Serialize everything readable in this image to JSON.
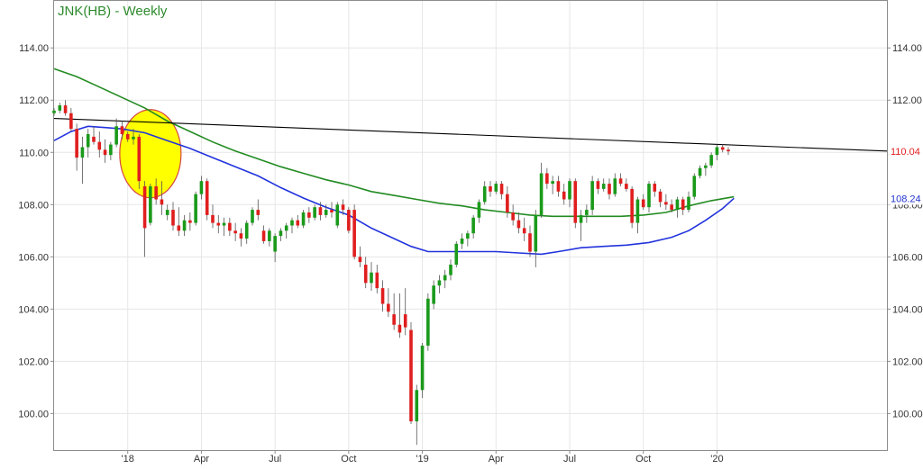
{
  "chart_data": {
    "type": "candlestick",
    "title": "JNK(HB) - Weekly",
    "ylim": [
      98.6,
      115.8
    ],
    "y_ticks": [
      "100.00",
      "102.00",
      "104.00",
      "106.00",
      "108.00",
      "110.00",
      "112.00",
      "114.00"
    ],
    "y_tick_values": [
      100,
      102,
      104,
      106,
      108,
      110,
      112,
      114
    ],
    "x_ticks": [
      {
        "label": "'18",
        "week": 13
      },
      {
        "label": "Apr",
        "week": 26
      },
      {
        "label": "Jul",
        "week": 39
      },
      {
        "label": "Oct",
        "week": 52
      },
      {
        "label": "'19",
        "week": 65
      },
      {
        "label": "Apr",
        "week": 78
      },
      {
        "label": "Jul",
        "week": 91
      },
      {
        "label": "Oct",
        "week": 104
      },
      {
        "label": "'20",
        "week": 117
      }
    ],
    "x_range_weeks": [
      0,
      147
    ],
    "price_badges": [
      {
        "value": "110.04",
        "y": 110.04,
        "color": "#e02020"
      },
      {
        "value": "108.24",
        "y": 108.24,
        "color": "#2233cc"
      }
    ],
    "trendline": {
      "color": "#000000",
      "start": {
        "week": 0,
        "y": 111.3
      },
      "end": {
        "week": 147,
        "y": 110.05
      }
    },
    "highlight_ellipse": {
      "center_week": 17,
      "center_y": 109.95,
      "fill": "#ffff00",
      "stroke": "#d64545"
    },
    "series": [
      {
        "name": "",
        "type": "moving_average",
        "color": "#228b22",
        "points": [
          [
            0,
            113.2
          ],
          [
            4,
            112.9
          ],
          [
            8,
            112.5
          ],
          [
            12,
            112.1
          ],
          [
            16,
            111.7
          ],
          [
            20,
            111.2
          ],
          [
            24,
            110.8
          ],
          [
            28,
            110.4
          ],
          [
            32,
            110.05
          ],
          [
            36,
            109.75
          ],
          [
            40,
            109.45
          ],
          [
            44,
            109.2
          ],
          [
            48,
            108.95
          ],
          [
            52,
            108.75
          ],
          [
            56,
            108.5
          ],
          [
            60,
            108.35
          ],
          [
            64,
            108.2
          ],
          [
            68,
            108.05
          ],
          [
            72,
            107.95
          ],
          [
            76,
            107.8
          ],
          [
            80,
            107.7
          ],
          [
            84,
            107.6
          ],
          [
            88,
            107.55
          ],
          [
            92,
            107.55
          ],
          [
            96,
            107.55
          ],
          [
            100,
            107.55
          ],
          [
            104,
            107.6
          ],
          [
            108,
            107.7
          ],
          [
            112,
            107.95
          ],
          [
            116,
            108.15
          ],
          [
            120,
            108.3
          ]
        ]
      },
      {
        "name": "",
        "type": "moving_average",
        "color": "#2233dd",
        "points": [
          [
            0,
            110.45
          ],
          [
            3,
            110.8
          ],
          [
            6,
            111.0
          ],
          [
            9,
            110.95
          ],
          [
            12,
            110.9
          ],
          [
            16,
            110.75
          ],
          [
            20,
            110.45
          ],
          [
            24,
            110.15
          ],
          [
            28,
            109.8
          ],
          [
            32,
            109.45
          ],
          [
            36,
            109.1
          ],
          [
            40,
            108.65
          ],
          [
            44,
            108.25
          ],
          [
            48,
            107.9
          ],
          [
            52,
            107.6
          ],
          [
            56,
            107.1
          ],
          [
            60,
            106.7
          ],
          [
            63,
            106.4
          ],
          [
            66,
            106.2
          ],
          [
            70,
            106.2
          ],
          [
            74,
            106.2
          ],
          [
            78,
            106.2
          ],
          [
            82,
            106.15
          ],
          [
            86,
            106.1
          ],
          [
            89,
            106.2
          ],
          [
            93,
            106.35
          ],
          [
            97,
            106.4
          ],
          [
            101,
            106.45
          ],
          [
            105,
            106.55
          ],
          [
            109,
            106.75
          ],
          [
            112,
            107.0
          ],
          [
            115,
            107.4
          ],
          [
            118,
            107.85
          ],
          [
            120,
            108.24
          ]
        ]
      }
    ],
    "ohlc": [
      [
        0,
        111.5,
        111.7,
        111.4,
        111.6
      ],
      [
        1,
        111.6,
        111.9,
        111.5,
        111.8
      ],
      [
        2,
        111.8,
        112.0,
        111.4,
        111.5
      ],
      [
        3,
        111.5,
        111.7,
        110.8,
        110.9
      ],
      [
        4,
        110.9,
        111.1,
        109.3,
        109.8
      ],
      [
        5,
        109.8,
        110.6,
        108.8,
        110.2
      ],
      [
        6,
        110.2,
        110.9,
        109.8,
        110.7
      ],
      [
        7,
        110.6,
        111.0,
        110.3,
        110.4
      ],
      [
        8,
        110.4,
        110.8,
        109.8,
        110.1
      ],
      [
        9,
        110.1,
        110.5,
        109.6,
        109.9
      ],
      [
        10,
        109.9,
        110.4,
        109.7,
        110.3
      ],
      [
        11,
        110.3,
        111.3,
        110.2,
        111.0
      ],
      [
        12,
        111.0,
        111.2,
        110.5,
        110.7
      ],
      [
        13,
        110.7,
        110.8,
        110.4,
        110.5
      ],
      [
        14,
        110.5,
        110.9,
        110.3,
        110.6
      ],
      [
        15,
        110.6,
        110.7,
        108.6,
        108.9
      ],
      [
        16,
        108.7,
        108.9,
        106.0,
        107.1
      ],
      [
        17,
        107.3,
        108.8,
        107.2,
        108.7
      ],
      [
        18,
        108.7,
        109.0,
        108.0,
        108.2
      ],
      [
        19,
        108.2,
        108.9,
        107.6,
        108.0
      ],
      [
        20,
        107.6,
        108.0,
        107.4,
        107.8
      ],
      [
        21,
        107.8,
        108.1,
        107.0,
        107.2
      ],
      [
        22,
        107.2,
        107.9,
        106.8,
        107.0
      ],
      [
        23,
        107.0,
        107.6,
        106.8,
        107.4
      ],
      [
        24,
        107.4,
        107.7,
        107.0,
        107.3
      ],
      [
        25,
        107.3,
        108.5,
        107.2,
        108.4
      ],
      [
        26,
        108.4,
        109.1,
        108.2,
        108.9
      ],
      [
        27,
        108.9,
        109.0,
        107.4,
        107.6
      ],
      [
        28,
        107.6,
        108.0,
        107.1,
        107.3
      ],
      [
        29,
        107.3,
        107.6,
        106.9,
        107.2
      ],
      [
        30,
        107.2,
        107.5,
        106.8,
        107.3
      ],
      [
        31,
        107.3,
        107.5,
        106.8,
        107.0
      ],
      [
        32,
        107.0,
        107.3,
        106.6,
        106.9
      ],
      [
        33,
        106.9,
        107.1,
        106.4,
        106.7
      ],
      [
        34,
        106.7,
        107.4,
        106.5,
        107.3
      ],
      [
        35,
        107.3,
        107.9,
        107.2,
        107.8
      ],
      [
        36,
        107.8,
        108.2,
        107.4,
        107.6
      ],
      [
        37,
        107.0,
        107.2,
        106.5,
        106.6
      ],
      [
        38,
        106.6,
        107.1,
        106.4,
        107.0
      ],
      [
        39,
        106.2,
        106.9,
        105.8,
        106.8
      ],
      [
        40,
        106.8,
        107.1,
        106.6,
        107.0
      ],
      [
        41,
        107.0,
        107.3,
        106.7,
        107.2
      ],
      [
        42,
        107.2,
        107.5,
        106.9,
        107.4
      ],
      [
        43,
        107.4,
        107.6,
        107.1,
        107.2
      ],
      [
        44,
        107.2,
        107.8,
        107.1,
        107.7
      ],
      [
        45,
        107.7,
        107.9,
        107.3,
        107.5
      ],
      [
        46,
        107.5,
        108.0,
        107.4,
        107.9
      ],
      [
        47,
        107.9,
        108.1,
        107.4,
        107.6
      ],
      [
        48,
        107.6,
        108.0,
        107.5,
        107.8
      ],
      [
        49,
        107.8,
        108.1,
        107.5,
        107.7
      ],
      [
        50,
        107.2,
        108.1,
        107.1,
        108.0
      ],
      [
        51,
        108.0,
        108.2,
        107.6,
        107.8
      ],
      [
        52,
        107.8,
        107.9,
        106.9,
        107.0
      ],
      [
        53,
        107.8,
        108.0,
        105.9,
        106.0
      ],
      [
        54,
        106.0,
        106.4,
        105.6,
        105.8
      ],
      [
        55,
        105.7,
        106.0,
        104.8,
        105.0
      ],
      [
        56,
        105.0,
        105.8,
        104.7,
        105.4
      ],
      [
        57,
        105.4,
        105.7,
        104.6,
        104.8
      ],
      [
        58,
        104.8,
        105.1,
        103.9,
        104.2
      ],
      [
        59,
        104.2,
        104.8,
        103.7,
        103.9
      ],
      [
        60,
        103.8,
        104.6,
        103.2,
        103.4
      ],
      [
        61,
        103.4,
        104.6,
        102.9,
        103.1
      ],
      [
        62,
        103.8,
        104.8,
        103.0,
        103.3
      ],
      [
        63,
        103.2,
        103.5,
        99.6,
        99.7
      ],
      [
        64,
        99.7,
        101.1,
        98.8,
        100.9
      ],
      [
        65,
        100.9,
        102.7,
        100.6,
        102.6
      ],
      [
        66,
        102.6,
        104.6,
        102.4,
        104.4
      ],
      [
        67,
        104.2,
        105.1,
        104.0,
        104.9
      ],
      [
        68,
        104.9,
        105.3,
        104.6,
        105.1
      ],
      [
        69,
        105.1,
        105.5,
        104.8,
        105.3
      ],
      [
        70,
        105.3,
        105.9,
        105.1,
        105.7
      ],
      [
        71,
        105.7,
        106.6,
        105.6,
        106.5
      ],
      [
        72,
        106.5,
        106.9,
        106.3,
        106.7
      ],
      [
        73,
        106.7,
        107.0,
        106.4,
        106.9
      ],
      [
        74,
        106.9,
        107.6,
        106.7,
        107.5
      ],
      [
        75,
        107.5,
        108.2,
        107.3,
        108.1
      ],
      [
        76,
        108.1,
        108.9,
        108.0,
        108.7
      ],
      [
        77,
        108.7,
        108.9,
        108.3,
        108.5
      ],
      [
        78,
        108.5,
        108.9,
        108.4,
        108.8
      ],
      [
        79,
        108.8,
        108.9,
        108.2,
        108.4
      ],
      [
        80,
        108.4,
        108.7,
        107.5,
        107.7
      ],
      [
        81,
        107.7,
        108.0,
        107.2,
        107.4
      ],
      [
        82,
        107.4,
        107.7,
        106.9,
        107.1
      ],
      [
        83,
        107.1,
        107.5,
        106.6,
        106.9
      ],
      [
        84,
        106.9,
        107.2,
        106.0,
        106.2
      ],
      [
        85,
        106.2,
        107.8,
        105.6,
        107.6
      ],
      [
        86,
        107.6,
        109.6,
        107.5,
        109.2
      ],
      [
        87,
        109.2,
        109.4,
        108.6,
        108.8
      ],
      [
        88,
        108.8,
        109.1,
        108.4,
        108.9
      ],
      [
        89,
        108.9,
        109.1,
        108.3,
        108.5
      ],
      [
        90,
        108.5,
        108.8,
        108.0,
        108.2
      ],
      [
        91,
        108.2,
        109.0,
        107.9,
        108.9
      ],
      [
        92,
        108.9,
        109.0,
        107.1,
        107.3
      ],
      [
        93,
        107.3,
        107.8,
        106.6,
        107.6
      ],
      [
        94,
        107.6,
        108.0,
        107.3,
        107.8
      ],
      [
        95,
        107.8,
        109.1,
        107.6,
        108.9
      ],
      [
        96,
        108.9,
        109.0,
        108.4,
        108.6
      ],
      [
        97,
        108.6,
        109.0,
        108.5,
        108.8
      ],
      [
        98,
        108.8,
        109.0,
        108.2,
        108.4
      ],
      [
        99,
        108.4,
        109.2,
        108.3,
        109.0
      ],
      [
        100,
        109.0,
        109.2,
        108.7,
        108.8
      ],
      [
        101,
        108.8,
        109.0,
        108.5,
        108.6
      ],
      [
        102,
        108.6,
        108.7,
        107.1,
        107.3
      ],
      [
        103,
        107.3,
        108.3,
        106.9,
        108.2
      ],
      [
        104,
        108.2,
        108.4,
        107.8,
        107.9
      ],
      [
        105,
        107.9,
        108.9,
        107.7,
        108.8
      ],
      [
        106,
        108.8,
        108.9,
        108.3,
        108.5
      ],
      [
        107,
        108.5,
        108.6,
        107.9,
        108.1
      ],
      [
        108,
        108.1,
        108.4,
        107.8,
        108.0
      ],
      [
        109,
        108.0,
        108.2,
        107.7,
        107.8
      ],
      [
        110,
        107.8,
        108.3,
        107.5,
        108.2
      ],
      [
        111,
        108.2,
        108.3,
        107.6,
        107.8
      ],
      [
        112,
        107.8,
        108.5,
        107.7,
        108.3
      ],
      [
        113,
        108.3,
        109.2,
        108.2,
        109.1
      ],
      [
        114,
        109.1,
        109.5,
        109.0,
        109.4
      ],
      [
        115,
        109.4,
        109.6,
        109.1,
        109.5
      ],
      [
        116,
        109.5,
        110.0,
        109.4,
        109.9
      ],
      [
        117,
        109.9,
        110.3,
        109.7,
        110.2
      ],
      [
        118,
        110.2,
        110.3,
        110.0,
        110.1
      ],
      [
        119,
        110.1,
        110.2,
        109.9,
        110.04
      ]
    ]
  }
}
